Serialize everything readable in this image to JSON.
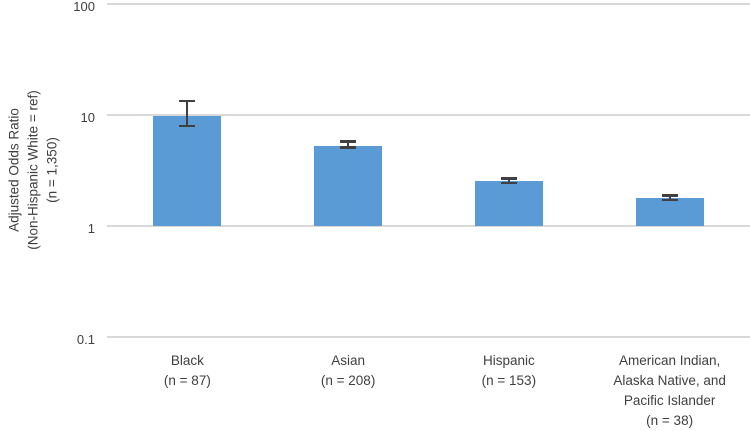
{
  "chart_data": {
    "type": "bar",
    "title": "",
    "ylabel": "Adjusted Odds Ratio\n(Non-Hispanic White = ref)\n(n = 1,350)",
    "xlabel": "",
    "y_scale": "log10",
    "ylim": [
      0.1,
      100
    ],
    "y_ticks": [
      100,
      10,
      1,
      0.1
    ],
    "grid": true,
    "legend": false,
    "bar_base": 1,
    "categories": [
      "Black",
      "Asian",
      "Hispanic",
      "American Indian, Alaska Native, and Pacific Islander"
    ],
    "x_tick_labels": [
      "Black\n(n = 87)",
      "Asian\n(n = 208)",
      "Hispanic\n(n = 153)",
      "American Indian,\nAlaska Native, and\nPacific Islander\n(n = 38)"
    ],
    "values": [
      9.7,
      5.3,
      2.55,
      1.8
    ],
    "error_low": [
      8.0,
      5.1,
      2.45,
      1.72
    ],
    "error_high": [
      13.5,
      5.8,
      2.7,
      1.9
    ],
    "colors": {
      "bar": "#5B9BD5",
      "error": "#404040",
      "gridline": "#D9D9D9",
      "text": "#404040",
      "background": "#FFFFFF"
    }
  }
}
